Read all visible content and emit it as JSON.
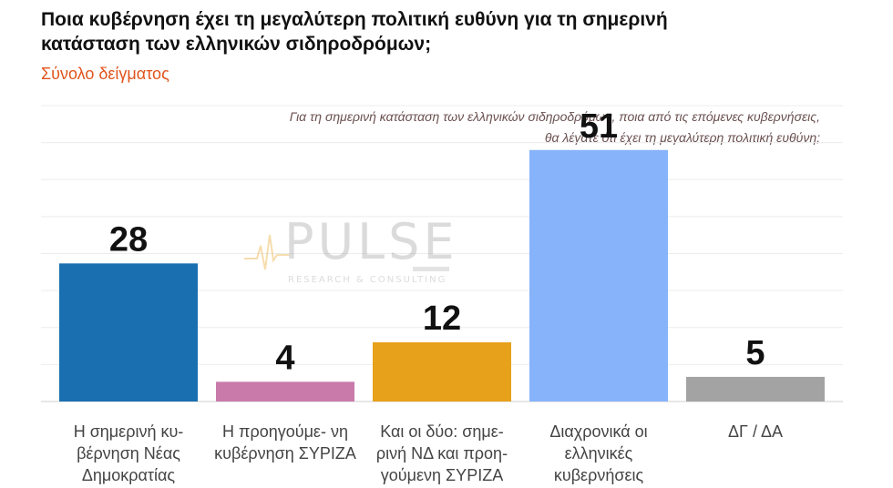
{
  "title": "Ποια κυβέρνηση έχει τη μεγαλύτερη πολιτική ευθύνη για τη σημερινή κατάσταση των ελληνικών σιδηροδρόμων;",
  "subtitle": "Σύνολο δείγματος",
  "question": "Για τη σημερινή κατάσταση των ελληνικών σιδηροδρόμων, ποια από τις επόμενες κυβερνήσεις, θα λέγατε ότι έχει τη μεγαλύτερη πολιτική ευθύνη;",
  "watermark": {
    "brand": "PULSE",
    "tagline": "RESEARCH & CONSULTING"
  },
  "chart_data": {
    "type": "bar",
    "categories": [
      "Η σημερινή κυ- βέρνηση Νέας Δημοκρατίας",
      "Η προηγούμε- νη κυβέρνηση ΣΥΡΙΖΑ",
      "Και οι δύο: σημε- ρινή ΝΔ και προη- γούμενη ΣΥΡΙΖΑ",
      "Διαχρονικά οι ελληνικές κυβερνήσεις",
      "ΔΓ / ΔΑ"
    ],
    "values": [
      28,
      4,
      12,
      51,
      5
    ],
    "colors": [
      "#1a6fb0",
      "#c97aaa",
      "#e8a11a",
      "#86b3fa",
      "#a3a3a3"
    ],
    "ylim": [
      0,
      60
    ],
    "grid": true,
    "xlabel": "",
    "ylabel": ""
  }
}
